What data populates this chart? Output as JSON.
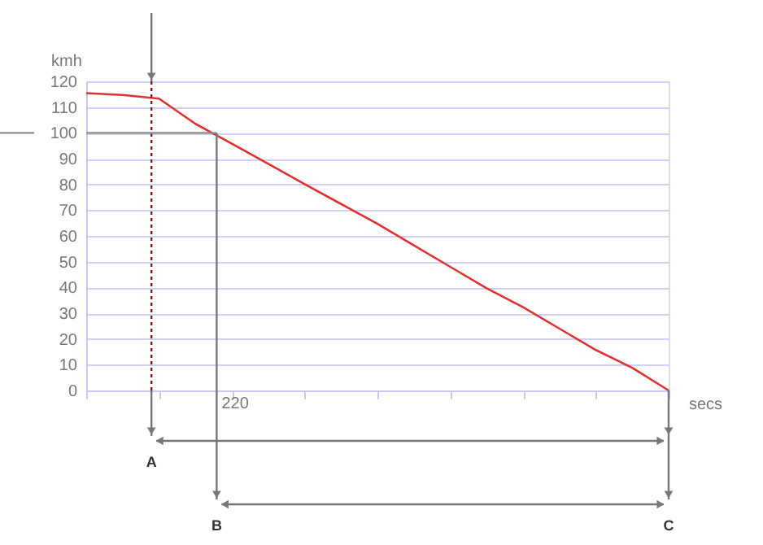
{
  "chart_data": {
    "type": "line",
    "xlabel": "secs",
    "ylabel": "kmh",
    "categories": [
      null,
      null,
      null,
      null,
      null,
      null,
      null,
      null,
      null,
      null,
      null,
      null,
      null,
      null,
      null,
      null,
      null
    ],
    "series": [
      {
        "color": "#e03030",
        "values": [
          115.4,
          114.7,
          113.3,
          103.5,
          95.8,
          88.0,
          80.1,
          72.4,
          64.7,
          56.3,
          48.0,
          39.7,
          32.3,
          24.0,
          15.7,
          8.8,
          0
        ]
      }
    ],
    "ylim": [
      0,
      120
    ],
    "yticks": [
      0,
      10,
      20,
      30,
      40,
      50,
      60,
      70,
      80,
      90,
      100,
      110,
      120
    ],
    "grid": "y",
    "tick_labels": "y",
    "marker": "none",
    "line_style": "solid",
    "annotations": [
      "220",
      "A",
      "B",
      "C"
    ],
    "ref_lines": [
      {
        "axis": "y",
        "value": 100,
        "color": "#8c8c8c",
        "line_style": "solid"
      }
    ]
  }
}
